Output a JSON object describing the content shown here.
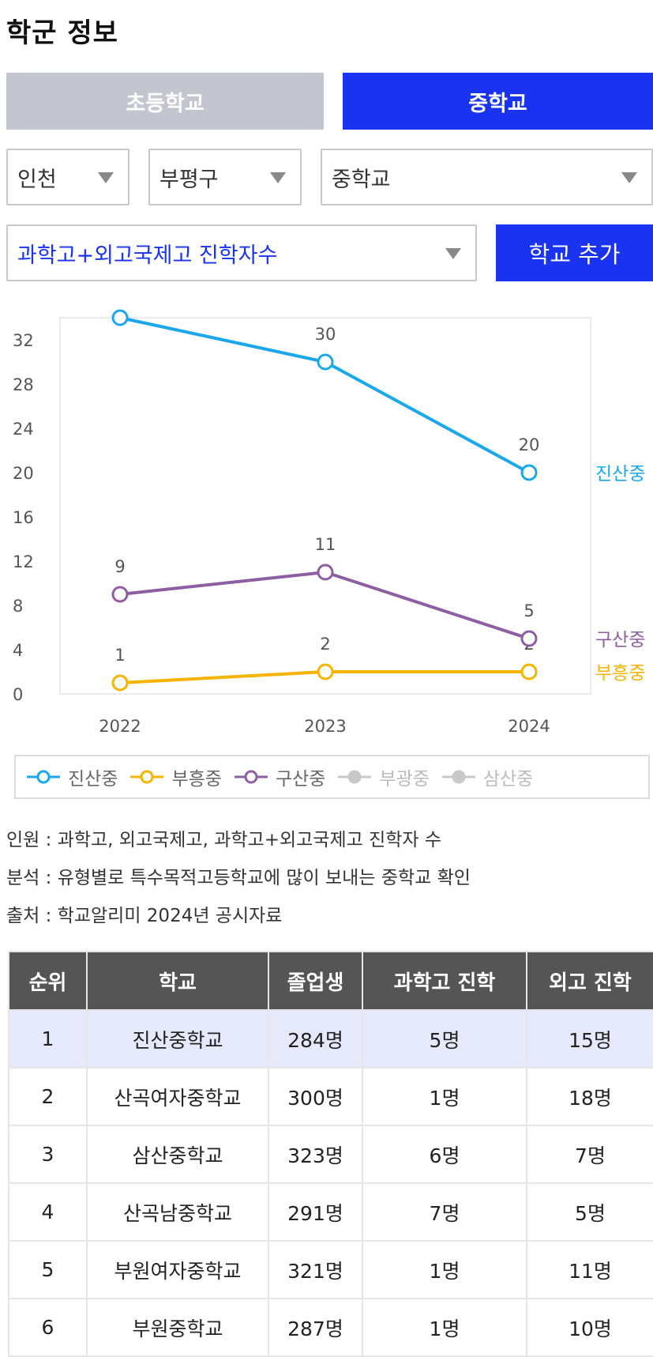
{
  "page_title": "학군 정보",
  "tabs": [
    {
      "label": "초등학교",
      "active": false
    },
    {
      "label": "중학교",
      "active": true
    }
  ],
  "filters": {
    "region": "인천",
    "district": "부평구",
    "school_type": "중학교",
    "metric": "과학고+외고국제고 진학자수",
    "add_button": "학교 추가"
  },
  "chart_data": {
    "type": "line",
    "x": [
      "2022",
      "2023",
      "2024"
    ],
    "y_ticks": [
      0,
      4,
      8,
      12,
      16,
      20,
      24,
      28,
      32
    ],
    "ylim": [
      0,
      34
    ],
    "series": [
      {
        "name": "진산중",
        "color": "#1aa7ec",
        "values": [
          34,
          30,
          20
        ],
        "labels": [
          "",
          "30",
          "20"
        ]
      },
      {
        "name": "부흥중",
        "color": "#f5b400",
        "values": [
          1,
          2,
          2
        ],
        "labels": [
          "1",
          "2",
          "2"
        ]
      },
      {
        "name": "구산중",
        "color": "#8e5ea2",
        "values": [
          9,
          11,
          5
        ],
        "labels": [
          "9",
          "11",
          "5"
        ]
      }
    ],
    "legend": [
      {
        "name": "진산중",
        "color": "#1aa7ec",
        "active": true
      },
      {
        "name": "부흥중",
        "color": "#f5b400",
        "active": true
      },
      {
        "name": "구산중",
        "color": "#8e5ea2",
        "active": true
      },
      {
        "name": "부광중",
        "color": "#c8c8c8",
        "active": false
      },
      {
        "name": "삼산중",
        "color": "#c8c8c8",
        "active": false
      }
    ]
  },
  "notes": [
    "인원 : 과학고, 외고국제고, 과학고+외고국제고 진학자 수",
    "분석 : 유형별로 특수목적고등학교에 많이 보내는 중학교 확인",
    "출처 : 학교알리미 2024년 공시자료"
  ],
  "table": {
    "headers": [
      "순위",
      "학교",
      "졸업생",
      "과학고 진학",
      "외고 진학"
    ],
    "rows": [
      [
        "1",
        "진산중학교",
        "284명",
        "5명",
        "15명"
      ],
      [
        "2",
        "산곡여자중학교",
        "300명",
        "1명",
        "18명"
      ],
      [
        "3",
        "삼산중학교",
        "323명",
        "6명",
        "7명"
      ],
      [
        "4",
        "산곡남중학교",
        "291명",
        "7명",
        "5명"
      ],
      [
        "5",
        "부원여자중학교",
        "321명",
        "1명",
        "11명"
      ],
      [
        "6",
        "부원중학교",
        "287명",
        "1명",
        "10명"
      ]
    ],
    "highlight_row": 0
  }
}
